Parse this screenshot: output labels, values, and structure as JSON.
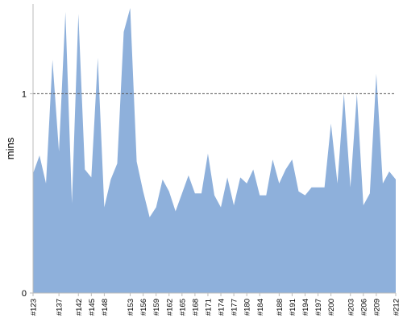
{
  "chart_data": {
    "type": "area",
    "title": "",
    "xlabel": "",
    "ylabel": "mins",
    "ylim": [
      0,
      1.45
    ],
    "y_ticks": [
      0,
      1
    ],
    "reference_line": {
      "value": 1,
      "style": "dashed"
    },
    "grid": false,
    "legend": "none",
    "colors": {
      "fill": "#8eb0db",
      "reference": "#555555",
      "axis": "#bbbbbb"
    },
    "x_tick_labels": [
      "#123",
      "#137",
      "#142",
      "#145",
      "#148",
      "#153",
      "#156",
      "#159",
      "#162",
      "#165",
      "#168",
      "#171",
      "#174",
      "#177",
      "#180",
      "#184",
      "#188",
      "#191",
      "#194",
      "#197",
      "#200",
      "#203",
      "#206",
      "#209",
      "#212"
    ],
    "x_tick_positions": [
      0,
      4,
      7,
      9,
      11,
      15,
      17,
      19,
      21,
      23,
      25,
      27,
      29,
      31,
      33,
      35,
      38,
      40,
      42,
      44,
      46,
      49,
      51,
      53,
      56
    ],
    "values": [
      0.6,
      0.69,
      0.55,
      1.17,
      0.71,
      1.41,
      0.45,
      1.4,
      0.62,
      0.58,
      1.18,
      0.43,
      0.57,
      0.65,
      1.31,
      1.43,
      0.66,
      0.51,
      0.38,
      0.43,
      0.57,
      0.51,
      0.41,
      0.5,
      0.59,
      0.5,
      0.5,
      0.7,
      0.49,
      0.43,
      0.58,
      0.44,
      0.58,
      0.55,
      0.62,
      0.49,
      0.49,
      0.67,
      0.55,
      0.62,
      0.67,
      0.51,
      0.49,
      0.53,
      0.53,
      0.53,
      0.85,
      0.55,
      1.0,
      0.53,
      1.0,
      0.44,
      0.5,
      1.1,
      0.55,
      0.61,
      0.57
    ]
  }
}
